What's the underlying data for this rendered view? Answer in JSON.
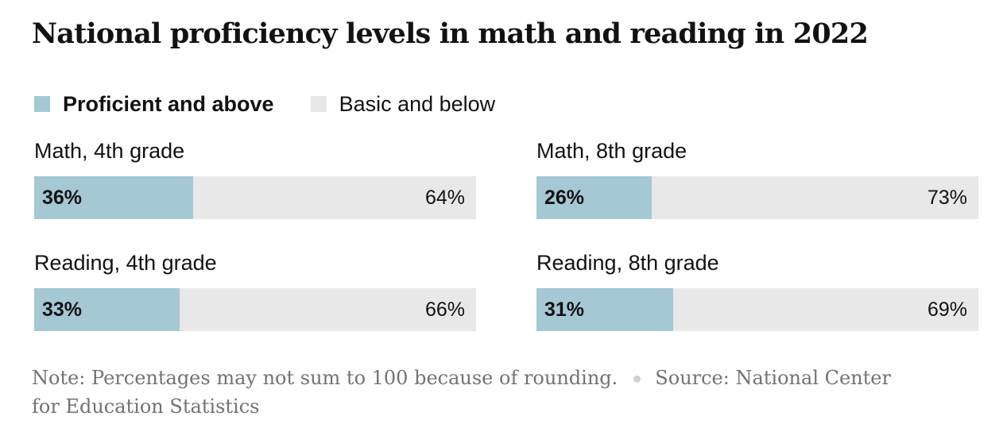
{
  "title": "National proficiency levels in math and reading in 2022",
  "legend": {
    "proficient": "Proficient and above",
    "basic": "Basic and below"
  },
  "colors": {
    "proficient": "#a4c8d4",
    "basic": "#e8e8e8"
  },
  "footer": {
    "note": "Note: Percentages may not sum to 100 because of rounding.",
    "source": "Source: National Center for Education Statistics"
  },
  "chart_data": {
    "type": "bar",
    "title": "National proficiency levels in math and reading in 2022",
    "series": [
      {
        "name": "Proficient and above",
        "values": [
          36,
          26,
          33,
          31
        ]
      },
      {
        "name": "Basic and below",
        "values": [
          64,
          73,
          66,
          69
        ]
      }
    ],
    "categories": [
      "Math, 4th grade",
      "Math, 8th grade",
      "Reading, 4th grade",
      "Reading, 8th grade"
    ],
    "labels": {
      "proficient": [
        "36%",
        "26%",
        "33%",
        "31%"
      ],
      "basic": [
        "64%",
        "73%",
        "66%",
        "69%"
      ]
    },
    "stacked": true,
    "xlim": [
      0,
      100
    ],
    "legend_position": "top-left"
  }
}
